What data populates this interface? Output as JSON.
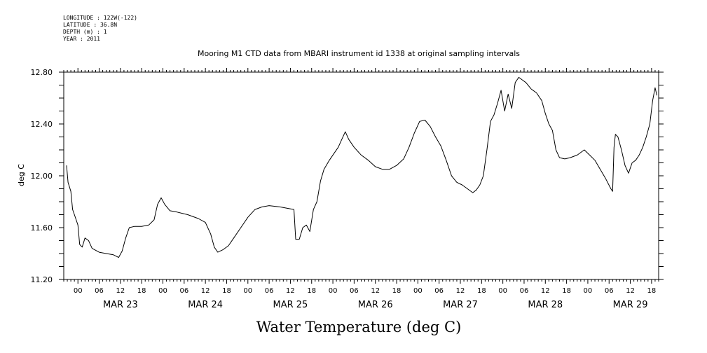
{
  "header": {
    "longitude": "LONGITUDE : 122W(-122)",
    "latitude": "LATITUDE : 36.8N",
    "depth": "DEPTH (m) : 1",
    "year": "YEAR : 2011"
  },
  "chart_data": {
    "type": "line",
    "title": "Mooring M1 CTD data from MBARI instrument id 1338 at original sampling intervals",
    "xlabel": "Water Temperature (deg C)",
    "ylabel": "deg C",
    "ylim": [
      11.2,
      12.8
    ],
    "xlim_hours": [
      -4,
      164
    ],
    "yticks": [
      "11.20",
      "11.60",
      "12.00",
      "12.40",
      "12.80"
    ],
    "hour_labels": [
      "00",
      "06",
      "12",
      "18"
    ],
    "day_labels": [
      "MAR 23",
      "MAR 24",
      "MAR 25",
      "MAR 26",
      "MAR 27",
      "MAR 28",
      "MAR 29"
    ],
    "grid": false,
    "series": [
      {
        "values": [
          [
            -3.2,
            12.08
          ],
          [
            -2.8,
            11.95
          ],
          [
            -2.0,
            11.88
          ],
          [
            -1.5,
            11.74
          ],
          [
            -1.0,
            11.7
          ],
          [
            0.0,
            11.62
          ],
          [
            0.5,
            11.47
          ],
          [
            1.2,
            11.45
          ],
          [
            2.0,
            11.52
          ],
          [
            3.0,
            11.5
          ],
          [
            4.0,
            11.44
          ],
          [
            6.0,
            11.41
          ],
          [
            8.0,
            11.4
          ],
          [
            10.0,
            11.39
          ],
          [
            11.5,
            11.37
          ],
          [
            12.5,
            11.42
          ],
          [
            13.5,
            11.52
          ],
          [
            14.5,
            11.6
          ],
          [
            16.0,
            11.61
          ],
          [
            18.0,
            11.61
          ],
          [
            20.0,
            11.62
          ],
          [
            21.5,
            11.66
          ],
          [
            22.5,
            11.78
          ],
          [
            23.5,
            11.83
          ],
          [
            24.5,
            11.78
          ],
          [
            26.0,
            11.73
          ],
          [
            28.0,
            11.72
          ],
          [
            31.0,
            11.7
          ],
          [
            34.0,
            11.67
          ],
          [
            36.0,
            11.64
          ],
          [
            37.5,
            11.55
          ],
          [
            38.5,
            11.45
          ],
          [
            39.5,
            11.41
          ],
          [
            41.0,
            11.43
          ],
          [
            42.5,
            11.46
          ],
          [
            44.0,
            11.52
          ],
          [
            46.0,
            11.6
          ],
          [
            48.0,
            11.68
          ],
          [
            50.0,
            11.74
          ],
          [
            52.0,
            11.76
          ],
          [
            54.0,
            11.77
          ],
          [
            57.0,
            11.76
          ],
          [
            59.0,
            11.75
          ],
          [
            61.0,
            11.74
          ],
          [
            61.5,
            11.51
          ],
          [
            62.5,
            11.51
          ],
          [
            63.5,
            11.6
          ],
          [
            64.5,
            11.62
          ],
          [
            65.5,
            11.57
          ],
          [
            66.5,
            11.74
          ],
          [
            67.5,
            11.8
          ],
          [
            68.5,
            11.96
          ],
          [
            69.5,
            12.05
          ],
          [
            71.0,
            12.12
          ],
          [
            72.5,
            12.18
          ],
          [
            73.5,
            12.22
          ],
          [
            74.5,
            12.28
          ],
          [
            75.5,
            12.34
          ],
          [
            76.5,
            12.28
          ],
          [
            78.0,
            12.22
          ],
          [
            80.0,
            12.16
          ],
          [
            82.0,
            12.12
          ],
          [
            84.0,
            12.07
          ],
          [
            86.0,
            12.05
          ],
          [
            88.0,
            12.05
          ],
          [
            90.0,
            12.08
          ],
          [
            92.0,
            12.13
          ],
          [
            93.5,
            12.22
          ],
          [
            95.0,
            12.33
          ],
          [
            96.5,
            12.42
          ],
          [
            98.0,
            12.43
          ],
          [
            99.5,
            12.38
          ],
          [
            101.0,
            12.3
          ],
          [
            102.5,
            12.23
          ],
          [
            104.0,
            12.12
          ],
          [
            105.5,
            12.0
          ],
          [
            107.0,
            11.95
          ],
          [
            108.5,
            11.93
          ],
          [
            110.0,
            11.9
          ],
          [
            111.5,
            11.87
          ],
          [
            112.5,
            11.89
          ],
          [
            113.5,
            11.93
          ],
          [
            114.5,
            12.0
          ],
          [
            115.5,
            12.2
          ],
          [
            116.5,
            12.42
          ],
          [
            117.5,
            12.47
          ],
          [
            118.5,
            12.56
          ],
          [
            119.5,
            12.66
          ],
          [
            120.5,
            12.5
          ],
          [
            121.5,
            12.63
          ],
          [
            122.5,
            12.52
          ],
          [
            123.5,
            12.72
          ],
          [
            124.5,
            12.76
          ],
          [
            125.5,
            12.74
          ],
          [
            126.5,
            12.72
          ],
          [
            128.0,
            12.67
          ],
          [
            129.5,
            12.64
          ],
          [
            131.0,
            12.58
          ],
          [
            132.0,
            12.48
          ],
          [
            133.0,
            12.4
          ],
          [
            134.0,
            12.35
          ],
          [
            135.0,
            12.2
          ],
          [
            136.0,
            12.14
          ],
          [
            137.5,
            12.13
          ],
          [
            139.0,
            12.14
          ],
          [
            141.0,
            12.16
          ],
          [
            143.0,
            12.2
          ],
          [
            144.5,
            12.16
          ],
          [
            146.0,
            12.12
          ],
          [
            147.5,
            12.05
          ],
          [
            149.0,
            11.98
          ],
          [
            150.5,
            11.9
          ],
          [
            151.0,
            11.88
          ],
          [
            151.4,
            12.22
          ],
          [
            151.8,
            12.32
          ],
          [
            152.5,
            12.3
          ],
          [
            153.5,
            12.2
          ],
          [
            154.5,
            12.08
          ],
          [
            155.5,
            12.02
          ],
          [
            156.5,
            12.1
          ],
          [
            157.5,
            12.12
          ],
          [
            158.5,
            12.16
          ],
          [
            159.5,
            12.22
          ],
          [
            160.5,
            12.3
          ],
          [
            161.5,
            12.4
          ],
          [
            162.3,
            12.58
          ],
          [
            163.0,
            12.68
          ],
          [
            163.5,
            12.62
          ]
        ]
      }
    ]
  }
}
